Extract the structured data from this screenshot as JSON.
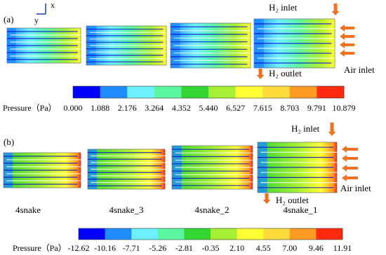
{
  "panel_a": {
    "label": "(a)",
    "axis_x": "x",
    "axis_y": "y",
    "h2_inlet": "H₂ inlet",
    "h2_outlet": "H₂ outlet",
    "air_inlet": "Air inlet",
    "colorbar": {
      "title": "Pressure（Pa）",
      "colors": [
        "#0000ff",
        "#1e8cff",
        "#6ff0ff",
        "#5cf5a0",
        "#33d633",
        "#a6f033",
        "#ffff33",
        "#ffdc3c",
        "#ff9a22",
        "#ff2a10"
      ],
      "labels": [
        "0.000",
        "1.088",
        "2.176",
        "3.264",
        "4.352",
        "5.440",
        "6.527",
        "7.615",
        "8.703",
        "9.791",
        "10.879"
      ]
    }
  },
  "panel_b": {
    "label": "(b)",
    "h2_inlet": "H₂ inlet",
    "h2_outlet": "H₂ outlet",
    "air_inlet": "Air inlet",
    "case_labels": [
      "4snake",
      "4snake_3",
      "4snake_2",
      "4snake_1"
    ],
    "colorbar": {
      "title": "Pressure（Pa）",
      "colors": [
        "#0000ff",
        "#1e8cff",
        "#6ff0ff",
        "#5cf5a0",
        "#33d633",
        "#a6f033",
        "#ffff33",
        "#ffdc3c",
        "#ff9a22",
        "#ff2a10"
      ],
      "labels": [
        "-12.62",
        "-10.16",
        "-7.71",
        "-5.26",
        "-2.81",
        "-0.35",
        "2.10",
        "4.55",
        "7.00",
        "9.46",
        "11.91"
      ]
    }
  }
}
